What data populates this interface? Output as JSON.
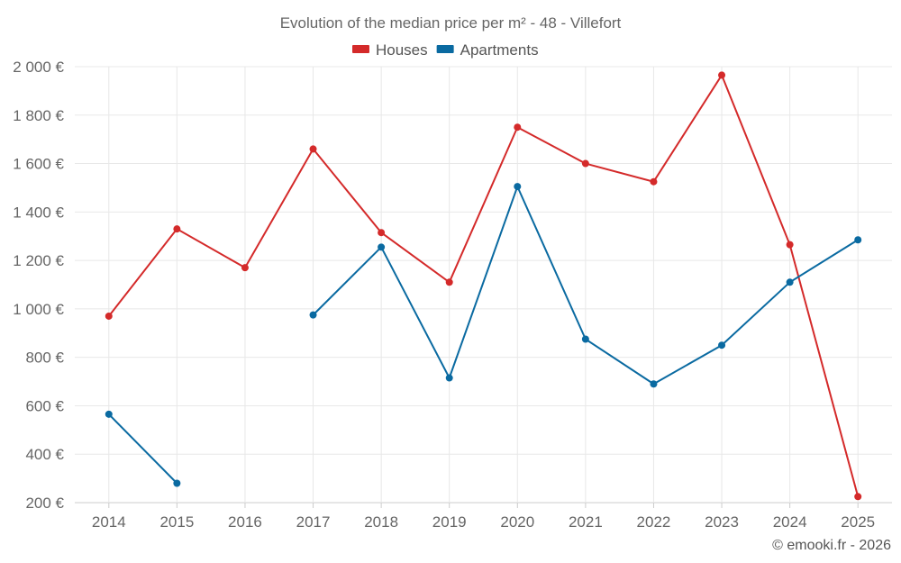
{
  "chart_data": {
    "type": "line",
    "title": "Evolution of the median price per m² - 48 - Villefort",
    "categories": [
      "2014",
      "2015",
      "2016",
      "2017",
      "2018",
      "2019",
      "2020",
      "2021",
      "2022",
      "2023",
      "2024",
      "2025"
    ],
    "series": [
      {
        "name": "Houses",
        "color": "#d42a2a",
        "values": [
          970,
          1330,
          1170,
          1660,
          1315,
          1110,
          1750,
          1600,
          1525,
          1965,
          1265,
          225
        ]
      },
      {
        "name": "Apartments",
        "color": "#0a6aa1",
        "values": [
          565,
          280,
          null,
          975,
          1255,
          715,
          1505,
          875,
          690,
          850,
          1110,
          1285
        ]
      }
    ],
    "yticks": [
      "200 €",
      "400 €",
      "600 €",
      "800 €",
      "1 000 €",
      "1 200 €",
      "1 400 €",
      "1 600 €",
      "1 800 €",
      "2 000 €"
    ],
    "ylim": [
      200,
      2000
    ],
    "xlabel": "",
    "ylabel": "",
    "legend_position": "top-center",
    "grid": true
  },
  "credit": "© emooki.fr - 2026"
}
